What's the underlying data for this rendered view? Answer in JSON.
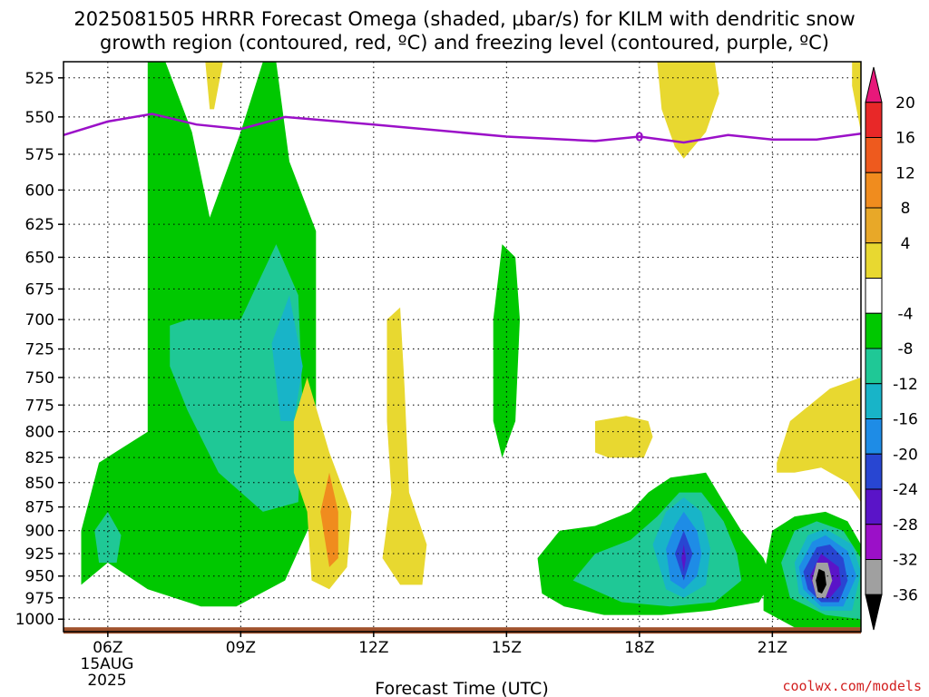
{
  "chart_data": {
    "type": "heatmap",
    "title_line1": "2025081505 HRRR Forecast Omega (shaded, μbar/s) for KILM with dendritic snow",
    "title_line2": "growth region (contoured, red, ºC) and freezing level (contoured, purple, ºC)",
    "xlabel": "Forecast Time (UTC)",
    "x_ticks": [
      "06Z",
      "09Z",
      "12Z",
      "15Z",
      "18Z",
      "21Z"
    ],
    "x_tick_hours": [
      6,
      9,
      12,
      15,
      18,
      21
    ],
    "x_date_label": "15AUG",
    "x_year_label": "2025",
    "xlim": [
      5,
      23
    ],
    "y_ticks": [
      525,
      550,
      575,
      600,
      625,
      650,
      675,
      700,
      725,
      750,
      775,
      800,
      825,
      850,
      875,
      900,
      925,
      950,
      975,
      1000
    ],
    "ylim": [
      515,
      1015
    ],
    "yscale": "log",
    "grid": true,
    "colorbar": {
      "labels": [
        "20",
        "16",
        "12",
        "8",
        "4",
        "-4",
        "-8",
        "-12",
        "-16",
        "-20",
        "-24",
        "-28",
        "-32",
        "-36"
      ],
      "colors": [
        "#e8187a",
        "#e82828",
        "#ee5a1e",
        "#f08c1e",
        "#e8a828",
        "#e8d830",
        "#ffffff",
        "#00c800",
        "#1fc896",
        "#18b4c8",
        "#1e8ce6",
        "#2846d2",
        "#5a14c8",
        "#9b10c8",
        "#a0a0a0",
        "#000000"
      ]
    },
    "freezing_level": {
      "color": "#9b10c8",
      "points": [
        [
          5.0,
          562
        ],
        [
          6.0,
          553
        ],
        [
          7.0,
          548
        ],
        [
          8.0,
          555
        ],
        [
          9.0,
          558
        ],
        [
          10.0,
          550
        ],
        [
          12.0,
          555
        ],
        [
          15.0,
          563
        ],
        [
          17.0,
          566
        ],
        [
          18.0,
          563
        ],
        [
          19.0,
          567
        ],
        [
          20.0,
          562
        ],
        [
          21.0,
          565
        ],
        [
          22.0,
          565
        ],
        [
          23.0,
          561
        ]
      ]
    },
    "regions": [
      {
        "level": "-8",
        "color": "#00c800",
        "points": [
          [
            6.9,
            515
          ],
          [
            7.3,
            515
          ],
          [
            7.9,
            560
          ],
          [
            8.3,
            620
          ],
          [
            9.0,
            560
          ],
          [
            9.5,
            515
          ],
          [
            9.8,
            515
          ],
          [
            10.1,
            580
          ],
          [
            10.7,
            630
          ],
          [
            10.7,
            700
          ],
          [
            10.7,
            800
          ],
          [
            10.7,
            880
          ],
          [
            10.0,
            955
          ],
          [
            8.9,
            985
          ],
          [
            8.1,
            985
          ],
          [
            6.9,
            965
          ],
          [
            6.0,
            935
          ],
          [
            5.4,
            960
          ],
          [
            5.4,
            900
          ],
          [
            5.8,
            830
          ],
          [
            6.9,
            800
          ],
          [
            6.9,
            600
          ]
        ]
      },
      {
        "level": "-12",
        "color": "#1fc896",
        "points": [
          [
            7.4,
            705
          ],
          [
            7.8,
            700
          ],
          [
            9.0,
            700
          ],
          [
            9.8,
            640
          ],
          [
            10.3,
            680
          ],
          [
            10.4,
            780
          ],
          [
            10.3,
            870
          ],
          [
            9.5,
            880
          ],
          [
            8.5,
            840
          ],
          [
            7.8,
            780
          ],
          [
            7.4,
            740
          ]
        ]
      },
      {
        "level": "-12",
        "color": "#1fc896",
        "points": [
          [
            5.7,
            900
          ],
          [
            6.0,
            880
          ],
          [
            6.3,
            905
          ],
          [
            6.2,
            935
          ],
          [
            5.8,
            935
          ]
        ]
      },
      {
        "level": "-16",
        "color": "#18b4c8",
        "points": [
          [
            9.7,
            720
          ],
          [
            10.1,
            680
          ],
          [
            10.4,
            740
          ],
          [
            10.2,
            790
          ],
          [
            9.9,
            790
          ]
        ]
      },
      {
        "level": "-8",
        "color": "#00c800",
        "points": [
          [
            14.7,
            700
          ],
          [
            14.9,
            640
          ],
          [
            15.2,
            650
          ],
          [
            15.3,
            700
          ],
          [
            15.2,
            790
          ],
          [
            14.9,
            825
          ],
          [
            14.7,
            790
          ]
        ]
      },
      {
        "level": "4",
        "color": "#e8d830",
        "points": [
          [
            8.2,
            515
          ],
          [
            8.6,
            515
          ],
          [
            8.4,
            545
          ],
          [
            8.3,
            545
          ]
        ]
      },
      {
        "level": "4",
        "color": "#e8d830",
        "points": [
          [
            10.2,
            790
          ],
          [
            10.5,
            750
          ],
          [
            11.0,
            820
          ],
          [
            11.5,
            880
          ],
          [
            11.4,
            940
          ],
          [
            11.0,
            965
          ],
          [
            10.6,
            955
          ],
          [
            10.5,
            880
          ],
          [
            10.2,
            840
          ]
        ]
      },
      {
        "level": "8",
        "color": "#f08c1e",
        "points": [
          [
            10.8,
            880
          ],
          [
            11.0,
            840
          ],
          [
            11.2,
            880
          ],
          [
            11.2,
            930
          ],
          [
            11.0,
            940
          ]
        ]
      },
      {
        "level": "4",
        "color": "#e8d830",
        "points": [
          [
            12.3,
            700
          ],
          [
            12.6,
            690
          ],
          [
            12.7,
            760
          ],
          [
            12.8,
            860
          ],
          [
            13.2,
            915
          ],
          [
            13.1,
            960
          ],
          [
            12.6,
            960
          ],
          [
            12.2,
            930
          ],
          [
            12.4,
            860
          ],
          [
            12.3,
            790
          ]
        ]
      },
      {
        "level": "4",
        "color": "#e8d830",
        "points": [
          [
            17.0,
            790
          ],
          [
            17.7,
            785
          ],
          [
            18.2,
            790
          ],
          [
            18.3,
            805
          ],
          [
            18.1,
            825
          ],
          [
            17.3,
            825
          ],
          [
            17.0,
            820
          ]
        ]
      },
      {
        "level": "4",
        "color": "#e8d830",
        "points": [
          [
            18.4,
            515
          ],
          [
            19.7,
            515
          ],
          [
            19.8,
            535
          ],
          [
            19.5,
            560
          ],
          [
            19.0,
            578
          ],
          [
            18.8,
            570
          ],
          [
            18.5,
            545
          ]
        ]
      },
      {
        "level": "4",
        "color": "#e8d830",
        "points": [
          [
            22.8,
            515
          ],
          [
            23.0,
            515
          ],
          [
            23.0,
            560
          ],
          [
            22.8,
            530
          ]
        ]
      },
      {
        "level": "4",
        "color": "#e8d830",
        "points": [
          [
            21.1,
            830
          ],
          [
            21.4,
            790
          ],
          [
            22.3,
            760
          ],
          [
            23.0,
            750
          ],
          [
            23.0,
            870
          ],
          [
            22.7,
            850
          ],
          [
            22.1,
            835
          ],
          [
            21.5,
            840
          ],
          [
            21.1,
            840
          ]
        ]
      },
      {
        "level": "-8",
        "color": "#00c800",
        "points": [
          [
            15.8,
            970
          ],
          [
            15.7,
            930
          ],
          [
            16.2,
            900
          ],
          [
            17.0,
            895
          ],
          [
            17.8,
            880
          ],
          [
            18.2,
            860
          ],
          [
            18.7,
            845
          ],
          [
            19.5,
            840
          ],
          [
            19.9,
            870
          ],
          [
            20.3,
            900
          ],
          [
            20.8,
            930
          ],
          [
            21.0,
            955
          ],
          [
            20.7,
            980
          ],
          [
            19.6,
            990
          ],
          [
            18.5,
            995
          ],
          [
            17.2,
            995
          ],
          [
            16.3,
            985
          ]
        ]
      },
      {
        "level": "-12",
        "color": "#1fc896",
        "points": [
          [
            16.5,
            955
          ],
          [
            17.0,
            925
          ],
          [
            17.8,
            910
          ],
          [
            18.4,
            885
          ],
          [
            18.9,
            860
          ],
          [
            19.4,
            860
          ],
          [
            19.9,
            890
          ],
          [
            20.2,
            925
          ],
          [
            20.3,
            955
          ],
          [
            19.7,
            980
          ],
          [
            18.7,
            985
          ],
          [
            17.6,
            980
          ]
        ]
      },
      {
        "level": "-16",
        "color": "#18b4c8",
        "points": [
          [
            18.3,
            915
          ],
          [
            18.6,
            880
          ],
          [
            19.0,
            865
          ],
          [
            19.4,
            880
          ],
          [
            19.6,
            920
          ],
          [
            19.5,
            960
          ],
          [
            19.0,
            975
          ],
          [
            18.6,
            965
          ]
        ]
      },
      {
        "level": "-20",
        "color": "#1e8ce6",
        "points": [
          [
            18.6,
            920
          ],
          [
            18.8,
            895
          ],
          [
            19.0,
            880
          ],
          [
            19.3,
            900
          ],
          [
            19.4,
            925
          ],
          [
            19.3,
            950
          ],
          [
            19.0,
            965
          ],
          [
            18.7,
            955
          ]
        ]
      },
      {
        "level": "-24",
        "color": "#2846d2",
        "points": [
          [
            18.8,
            925
          ],
          [
            19.0,
            900
          ],
          [
            19.2,
            925
          ],
          [
            19.0,
            955
          ]
        ]
      },
      {
        "level": "-28",
        "color": "#5a14c8",
        "points": [
          [
            18.95,
            930
          ],
          [
            19.0,
            915
          ],
          [
            19.05,
            930
          ],
          [
            19.0,
            945
          ]
        ]
      },
      {
        "level": "-8",
        "color": "#00c800",
        "points": [
          [
            20.8,
            950
          ],
          [
            21.0,
            900
          ],
          [
            21.5,
            885
          ],
          [
            22.2,
            880
          ],
          [
            22.7,
            890
          ],
          [
            23.0,
            915
          ],
          [
            23.0,
            1010
          ],
          [
            21.5,
            1010
          ],
          [
            20.8,
            990
          ]
        ]
      },
      {
        "level": "-12",
        "color": "#1fc896",
        "points": [
          [
            21.2,
            935
          ],
          [
            21.5,
            900
          ],
          [
            22.0,
            890
          ],
          [
            22.6,
            900
          ],
          [
            23.0,
            930
          ],
          [
            23.0,
            1000
          ],
          [
            22.2,
            995
          ],
          [
            21.4,
            975
          ]
        ]
      },
      {
        "level": "-16",
        "color": "#18b4c8",
        "points": [
          [
            21.5,
            935
          ],
          [
            21.8,
            905
          ],
          [
            22.2,
            898
          ],
          [
            22.8,
            915
          ],
          [
            23.0,
            945
          ],
          [
            22.8,
            990
          ],
          [
            22.1,
            990
          ],
          [
            21.6,
            970
          ]
        ]
      },
      {
        "level": "-20",
        "color": "#1e8ce6",
        "points": [
          [
            21.6,
            940
          ],
          [
            21.9,
            912
          ],
          [
            22.2,
            905
          ],
          [
            22.7,
            922
          ],
          [
            22.9,
            950
          ],
          [
            22.6,
            985
          ],
          [
            22.1,
            985
          ],
          [
            21.7,
            965
          ]
        ]
      },
      {
        "level": "-24",
        "color": "#2846d2",
        "points": [
          [
            21.7,
            945
          ],
          [
            22.0,
            918
          ],
          [
            22.3,
            915
          ],
          [
            22.6,
            930
          ],
          [
            22.7,
            955
          ],
          [
            22.5,
            980
          ],
          [
            22.1,
            980
          ],
          [
            21.8,
            965
          ]
        ]
      },
      {
        "level": "-28",
        "color": "#5a14c8",
        "points": [
          [
            21.85,
            950
          ],
          [
            22.1,
            925
          ],
          [
            22.5,
            940
          ],
          [
            22.55,
            960
          ],
          [
            22.3,
            975
          ],
          [
            22.0,
            975
          ]
        ]
      },
      {
        "level": "-32",
        "color": "#a0a0a0",
        "points": [
          [
            21.9,
            955
          ],
          [
            22.0,
            935
          ],
          [
            22.25,
            935
          ],
          [
            22.35,
            955
          ],
          [
            22.2,
            975
          ],
          [
            22.0,
            975
          ]
        ]
      },
      {
        "level": "-36",
        "color": "#000000",
        "points": [
          [
            21.98,
            955
          ],
          [
            22.05,
            942
          ],
          [
            22.18,
            945
          ],
          [
            22.22,
            960
          ],
          [
            22.12,
            970
          ],
          [
            22.03,
            968
          ]
        ]
      }
    ],
    "ground": {
      "color": "#a0522d",
      "pressure": 1013
    }
  },
  "credit": "coolwx.com/models"
}
